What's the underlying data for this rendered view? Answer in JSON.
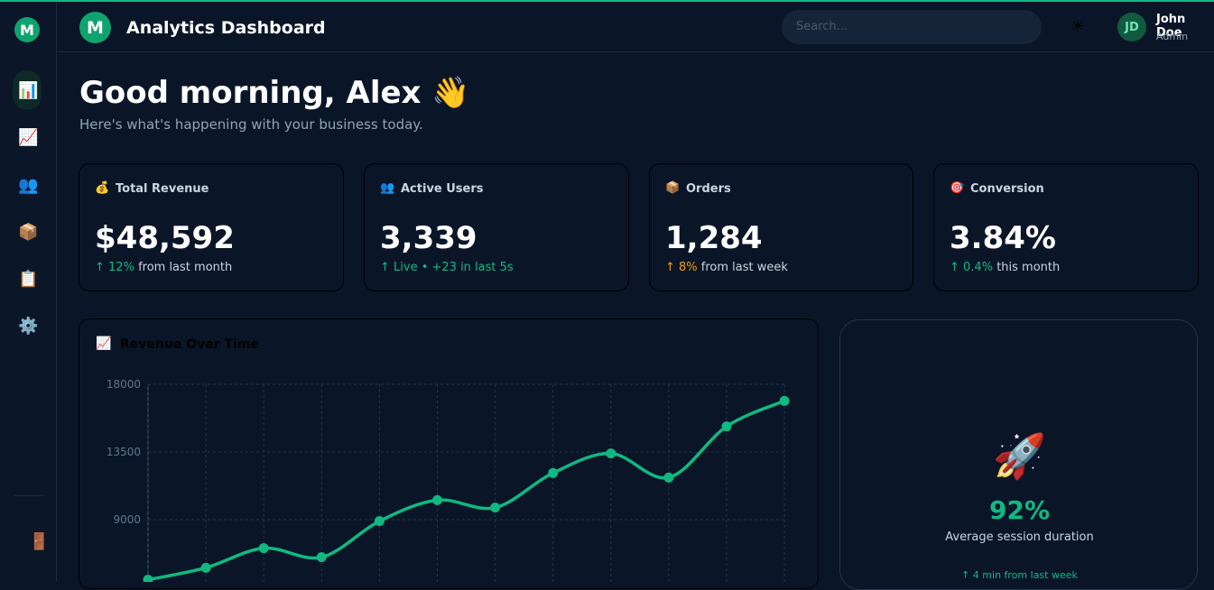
{
  "app": {
    "logo": "M",
    "title": "Analytics Dashboard"
  },
  "header": {
    "search_placeholder": "Search...",
    "avatar": "JD",
    "user_name": "John Doe",
    "user_role": "Admin"
  },
  "greeting": {
    "title": "Good morning, Alex 👋",
    "subtitle": "Here's what's happening with your business today."
  },
  "stats": [
    {
      "label": "Total Revenue",
      "value": "$48,592",
      "delta": "↑ 12%",
      "note": "from last month"
    },
    {
      "label": "Active Users",
      "value": "3,339",
      "delta": "↑ Live • +23 in last 5s"
    },
    {
      "label": "Orders",
      "value": "1,284",
      "delta": "↑ 8%",
      "note": "from last week"
    },
    {
      "label": "Conversion",
      "value": "3.84%",
      "delta": "↑ 0.4%",
      "note": "this month"
    }
  ],
  "chart_data": {
    "type": "line",
    "title": "Revenue Over Time",
    "categories": [
      null,
      null,
      null,
      null,
      null,
      null,
      null,
      null,
      null,
      null,
      null,
      null
    ],
    "values": [
      5000,
      5800,
      7100,
      6500,
      8900,
      10300,
      9800,
      12100,
      13400,
      11800,
      15200,
      16900
    ],
    "color": "#10b981",
    "ylim": [
      0,
      18000
    ],
    "yticks": [
      9000,
      13500,
      18000
    ],
    "grid": true
  },
  "session": {
    "value": "92%",
    "label": "Average session duration",
    "delta": "↑ 4 min from last week"
  }
}
